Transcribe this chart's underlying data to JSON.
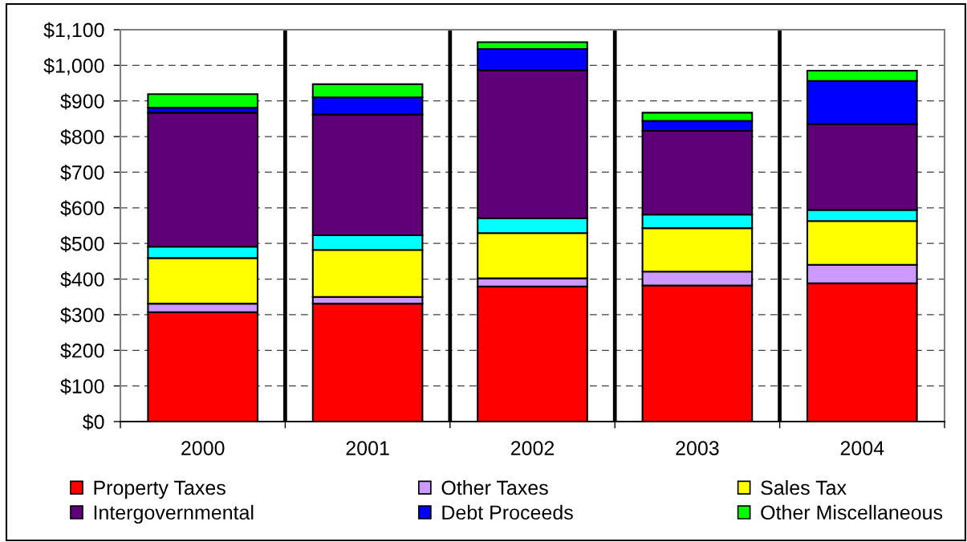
{
  "chart_data": {
    "type": "bar",
    "stacked": true,
    "categories": [
      "2000",
      "2001",
      "2002",
      "2003",
      "2004"
    ],
    "series": [
      {
        "name": "Property Taxes",
        "color": "#ff0000",
        "values": [
          307,
          331,
          379,
          382,
          388
        ]
      },
      {
        "name": "Other Taxes",
        "color": "#cc99ff",
        "values": [
          24,
          19,
          23,
          39,
          52
        ]
      },
      {
        "name": "Sales Tax",
        "color": "#ffff00",
        "values": [
          128,
          132,
          127,
          122,
          123
        ]
      },
      {
        "color": "#00ffff",
        "values": [
          32,
          41,
          42,
          38,
          31
        ]
      },
      {
        "name": "Intergovernmental",
        "color": "#5f0078",
        "values": [
          376,
          339,
          415,
          235,
          241
        ]
      },
      {
        "name": "Debt Proceeds",
        "color": "#0000ff",
        "values": [
          14,
          48,
          60,
          28,
          121
        ]
      },
      {
        "name": "Other Miscellaneous",
        "color": "#00ff00",
        "values": [
          38,
          37,
          19,
          23,
          29
        ]
      }
    ],
    "ylim": [
      0,
      1100
    ],
    "yticks": [
      {
        "value": 0,
        "label": "$0"
      },
      {
        "value": 100,
        "label": "$100"
      },
      {
        "value": 200,
        "label": "$200"
      },
      {
        "value": 300,
        "label": "$300"
      },
      {
        "value": 400,
        "label": "$400"
      },
      {
        "value": 500,
        "label": "$500"
      },
      {
        "value": 600,
        "label": "$600"
      },
      {
        "value": 700,
        "label": "$700"
      },
      {
        "value": 800,
        "label": "$800"
      },
      {
        "value": 900,
        "label": "$900"
      },
      {
        "value": 1000,
        "label": "$1,000"
      },
      {
        "value": 1100,
        "label": "$1,100"
      }
    ],
    "grid": true,
    "legend": "bottom"
  }
}
